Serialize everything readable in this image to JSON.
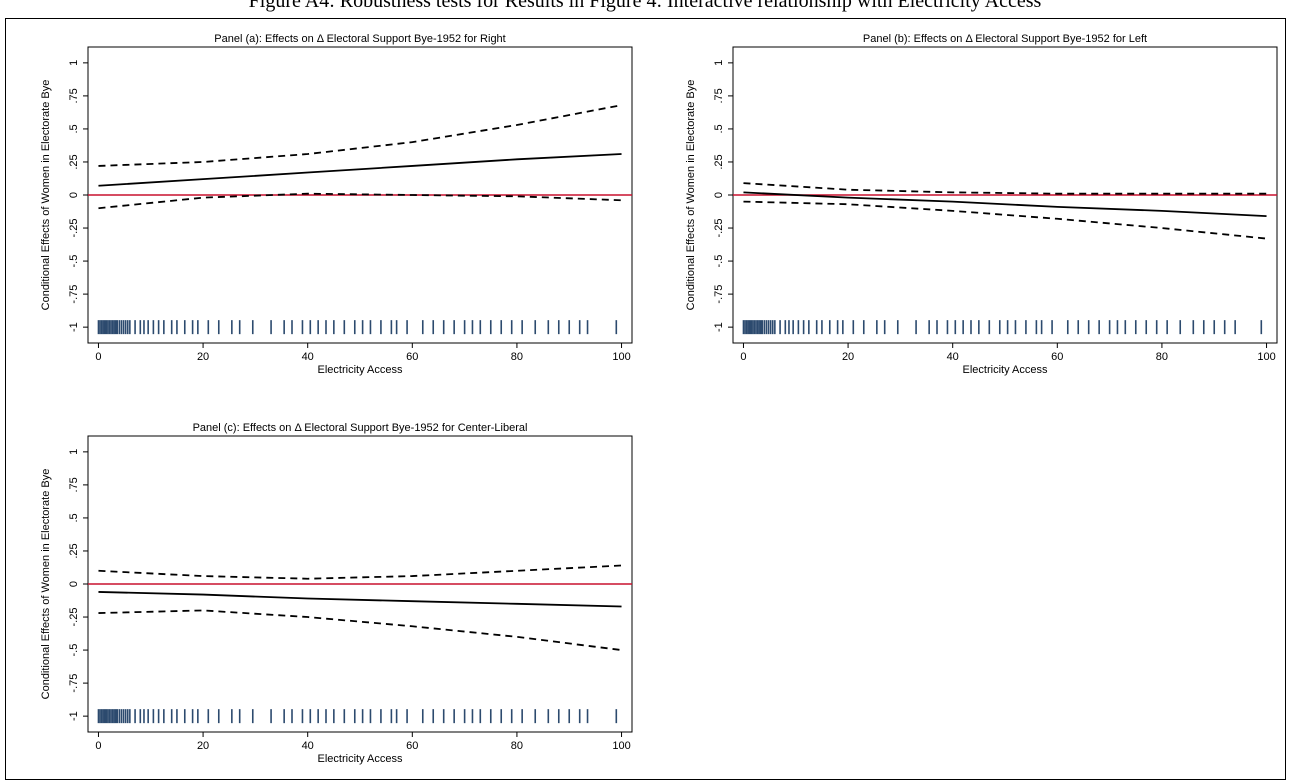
{
  "caption": "Figure A4: Robustness tests for Results in Figure 4: Interactive relationship with Electricity Access",
  "chart_data": [
    {
      "type": "line",
      "title": "Panel (a): Effects on Δ Electoral Support Bye-1952 for Right",
      "xlabel": "Electricity Access",
      "ylabel": "Conditional Effects of Women in Electorate Bye",
      "x": [
        0,
        20,
        40,
        60,
        80,
        100
      ],
      "series": [
        {
          "color": "#000000",
          "dash": false,
          "values": [
            0.07,
            0.12,
            0.17,
            0.22,
            0.27,
            0.31
          ]
        },
        {
          "color": "#000000",
          "dash": true,
          "values": [
            0.22,
            0.25,
            0.31,
            0.4,
            0.53,
            0.68
          ]
        },
        {
          "color": "#000000",
          "dash": true,
          "values": [
            -0.1,
            -0.02,
            0.01,
            0.0,
            -0.01,
            -0.04
          ]
        }
      ],
      "hline": 0,
      "hline_color": "#c8102e",
      "rug_color": "#2c4a6e",
      "rug": [
        0,
        0.3,
        0.6,
        0.9,
        1.2,
        1.5,
        1.8,
        2.1,
        2.4,
        2.7,
        3,
        3.3,
        3.6,
        4,
        4.4,
        4.8,
        5.2,
        5.6,
        6,
        7,
        8,
        8.7,
        9.5,
        10.5,
        11.5,
        12.5,
        14,
        15,
        16.5,
        18,
        19,
        21,
        23,
        25.5,
        27,
        29.5,
        33,
        35.5,
        37,
        39,
        40.5,
        42,
        43.5,
        45,
        47,
        49,
        50.5,
        52,
        54,
        56,
        57,
        59,
        62,
        64,
        66,
        68,
        70,
        71.5,
        73,
        75,
        77,
        79,
        81,
        83.5,
        86,
        88,
        90,
        92,
        93.5,
        99
      ],
      "xlim": [
        -2,
        102
      ],
      "xticks": [
        0,
        20,
        40,
        60,
        80,
        100
      ],
      "ylim": [
        -1.12,
        1.12
      ],
      "yticks": [
        1,
        {
          "value": 0.75,
          "label": ".75"
        },
        {
          "value": 0.5,
          "label": ".5"
        },
        {
          "value": 0.25,
          "label": ".25"
        },
        0,
        {
          "value": -0.25,
          "label": "-.25"
        },
        {
          "value": -0.5,
          "label": "-.5"
        },
        {
          "value": -0.75,
          "label": "-.75"
        },
        -1
      ]
    },
    {
      "type": "line",
      "title": "Panel (b): Effects on Δ Electoral Support Bye-1952 for Left",
      "xlabel": "Electricity Access",
      "ylabel": "Conditional Effects of Women in Electorate Bye",
      "x": [
        0,
        20,
        40,
        60,
        80,
        100
      ],
      "series": [
        {
          "color": "#000000",
          "dash": false,
          "values": [
            0.02,
            -0.02,
            -0.05,
            -0.09,
            -0.12,
            -0.16
          ]
        },
        {
          "color": "#000000",
          "dash": true,
          "values": [
            0.09,
            0.04,
            0.02,
            0.01,
            0.01,
            0.01
          ]
        },
        {
          "color": "#000000",
          "dash": true,
          "values": [
            -0.05,
            -0.07,
            -0.12,
            -0.18,
            -0.25,
            -0.33
          ]
        }
      ],
      "hline": 0,
      "hline_color": "#c8102e",
      "rug_color": "#2c4a6e",
      "rug": [
        0,
        0.3,
        0.6,
        0.9,
        1.2,
        1.5,
        1.8,
        2.1,
        2.4,
        2.7,
        3,
        3.3,
        3.6,
        4,
        4.4,
        4.8,
        5.2,
        5.6,
        6,
        7,
        8,
        8.7,
        9.5,
        10.5,
        11.5,
        12.5,
        14,
        15,
        16.5,
        18,
        19,
        21,
        23,
        25.5,
        27,
        29.5,
        33,
        35.5,
        37,
        39,
        40.5,
        42,
        43.5,
        45,
        47,
        49,
        50.5,
        52,
        54,
        56,
        57,
        59,
        62,
        64,
        66,
        68,
        70,
        71.5,
        73,
        75,
        77,
        79,
        81,
        83.5,
        86,
        88,
        90,
        92,
        94,
        99
      ],
      "xlim": [
        -2,
        102
      ],
      "xticks": [
        0,
        20,
        40,
        60,
        80,
        100
      ],
      "ylim": [
        -1.12,
        1.12
      ],
      "yticks": [
        1,
        {
          "value": 0.75,
          "label": ".75"
        },
        {
          "value": 0.5,
          "label": ".5"
        },
        {
          "value": 0.25,
          "label": ".25"
        },
        0,
        {
          "value": -0.25,
          "label": "-.25"
        },
        {
          "value": -0.5,
          "label": "-.5"
        },
        {
          "value": -0.75,
          "label": "-.75"
        },
        -1
      ]
    },
    {
      "type": "line",
      "title": "Panel (c): Effects on Δ Electoral Support Bye-1952 for Center-Liberal",
      "xlabel": "Electricity Access",
      "ylabel": "Conditional Effects of Women in Electorate Bye",
      "x": [
        0,
        20,
        40,
        60,
        80,
        100
      ],
      "series": [
        {
          "color": "#000000",
          "dash": false,
          "values": [
            -0.06,
            -0.08,
            -0.11,
            -0.13,
            -0.15,
            -0.17
          ]
        },
        {
          "color": "#000000",
          "dash": true,
          "values": [
            0.1,
            0.06,
            0.04,
            0.06,
            0.1,
            0.14
          ]
        },
        {
          "color": "#000000",
          "dash": true,
          "values": [
            -0.22,
            -0.2,
            -0.25,
            -0.32,
            -0.4,
            -0.5
          ]
        }
      ],
      "hline": 0,
      "hline_color": "#c8102e",
      "rug_color": "#2c4a6e",
      "rug": [
        0,
        0.3,
        0.6,
        0.9,
        1.2,
        1.5,
        1.8,
        2.1,
        2.4,
        2.7,
        3,
        3.3,
        3.6,
        4,
        4.4,
        4.8,
        5.2,
        5.6,
        6,
        7,
        8,
        8.7,
        9.5,
        10.5,
        11.5,
        12.5,
        14,
        15,
        16.5,
        18,
        19,
        21,
        23,
        25.5,
        27,
        29.5,
        33,
        35.5,
        37,
        39,
        40.5,
        42,
        43.5,
        45,
        47,
        49,
        50.5,
        52,
        54,
        56,
        57,
        59,
        62,
        64,
        66,
        68,
        70,
        71.5,
        73,
        75,
        77,
        79,
        81,
        83.5,
        86,
        88,
        90,
        92,
        93.5,
        99
      ],
      "xlim": [
        -2,
        102
      ],
      "xticks": [
        0,
        20,
        40,
        60,
        80,
        100
      ],
      "ylim": [
        -1.12,
        1.12
      ],
      "yticks": [
        1,
        {
          "value": 0.75,
          "label": ".75"
        },
        {
          "value": 0.5,
          "label": ".5"
        },
        {
          "value": 0.25,
          "label": ".25"
        },
        0,
        {
          "value": -0.25,
          "label": "-.25"
        },
        {
          "value": -0.5,
          "label": "-.5"
        },
        {
          "value": -0.75,
          "label": "-.75"
        },
        -1
      ]
    }
  ]
}
